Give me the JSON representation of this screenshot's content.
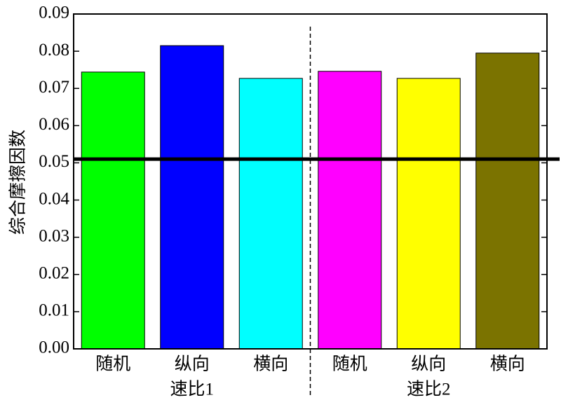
{
  "chart_data": {
    "type": "bar",
    "y_label": "综合摩擦因数",
    "categories": [
      "随机",
      "纵向",
      "横向",
      "随机",
      "纵向",
      "横向"
    ],
    "groups": [
      "速比1",
      "速比2"
    ],
    "values": [
      0.0744,
      0.0815,
      0.0727,
      0.0746,
      0.0727,
      0.0795
    ],
    "colors": [
      "#00ff00",
      "#0000ff",
      "#00ffff",
      "#ff00ff",
      "#ffff00",
      "#7b7300"
    ],
    "reference_line": 0.051,
    "ylim": [
      0,
      0.09
    ],
    "yticks": [
      {
        "value": 0,
        "label": "0.00"
      },
      0.01,
      0.02,
      0.03,
      0.04,
      0.05,
      0.06,
      0.07,
      0.08,
      0.09
    ]
  }
}
